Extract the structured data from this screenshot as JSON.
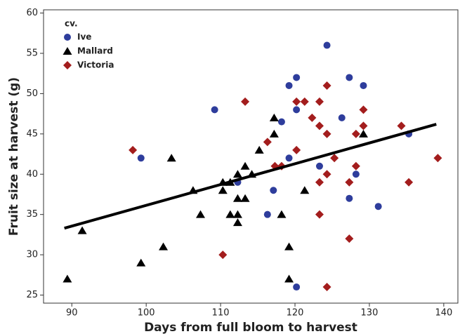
{
  "chart_data": {
    "type": "scatter",
    "x_label": "Days from full bloom to harvest",
    "y_label": "Fruit size at harvest (g)",
    "legend_title": "cv.",
    "legend": "top-left",
    "xlim": [
      86.2,
      141.9
    ],
    "xticks": [
      90,
      100,
      110,
      120,
      130,
      140
    ],
    "ylim": [
      24,
      60.4
    ],
    "yticks": [
      25,
      30,
      35,
      40,
      45,
      50,
      55,
      60
    ],
    "series": [
      {
        "name": "Ive",
        "color": "#2e3d9c",
        "marker": "circle",
        "x": [
          109.2,
          99.3,
          112.3,
          117.1,
          116.3,
          118.2,
          119.2,
          119.2,
          120.2,
          120.2,
          120.2,
          123.3,
          124.3,
          126.3,
          127.3,
          127.3,
          128.2,
          129.2,
          131.2,
          135.3
        ],
        "values": [
          48,
          42,
          39,
          38,
          35,
          46.5,
          42,
          51,
          52,
          48,
          26,
          41,
          56,
          47,
          52,
          37,
          40,
          51,
          36,
          45
        ]
      },
      {
        "name": "Mallard",
        "color": "#000000",
        "marker": "triangle",
        "x": [
          89.4,
          91.4,
          99.3,
          102.3,
          103.4,
          106.3,
          107.3,
          110.3,
          110.3,
          111.3,
          111.3,
          112.3,
          112.3,
          112.3,
          112.3,
          113.3,
          113.3,
          114.2,
          115.2,
          117.2,
          117.2,
          118.2,
          119.2,
          119.2,
          121.3,
          129.2
        ],
        "values": [
          27,
          33,
          29,
          31,
          42,
          38,
          35,
          39,
          38,
          35,
          39,
          35,
          40,
          37,
          34,
          41,
          37,
          40,
          43,
          47,
          45,
          35,
          31,
          27,
          38,
          45
        ]
      },
      {
        "name": "Victoria",
        "color": "#a31d1d",
        "marker": "diamond",
        "x": [
          98.2,
          110.3,
          113.3,
          116.3,
          117.3,
          118.2,
          120.2,
          120.2,
          121.3,
          122.3,
          123.3,
          123.3,
          123.3,
          123.3,
          124.3,
          124.3,
          124.3,
          124.3,
          125.3,
          127.3,
          127.3,
          128.2,
          128.2,
          129.2,
          129.2,
          134.3,
          135.3,
          139.2
        ],
        "values": [
          43,
          30,
          49,
          44,
          41,
          41,
          49,
          43,
          49,
          47,
          49,
          46,
          39,
          35,
          51,
          45,
          40,
          26,
          42,
          39,
          32,
          45,
          41,
          48,
          46,
          46,
          39,
          42
        ]
      }
    ],
    "trend_line": {
      "color": "#000000",
      "x": [
        89,
        139
      ],
      "values": [
        33.3,
        46.2
      ]
    }
  }
}
